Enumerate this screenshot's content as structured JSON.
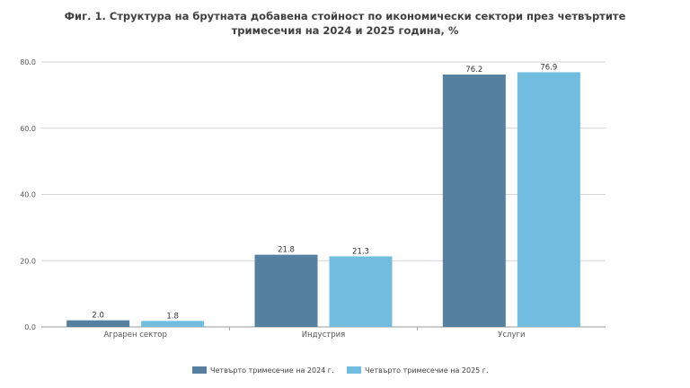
{
  "chart_data": {
    "type": "bar",
    "title": "Фиг. 1. Структура на брутната добавена стойност по икономически сектори през четвъртите",
    "title_line2": "тримесечия на 2024 и 2025 година, %",
    "categories": [
      "Аграрен сектор",
      "Индустрия",
      "Услуги"
    ],
    "series": [
      {
        "name": "Четвърто тримесечие на 2024 г.",
        "color": "#5580a0",
        "values": [
          2.0,
          21.8,
          76.2
        ]
      },
      {
        "name": "Четвърто тримесечие на 2025 г.",
        "color": "#70bde0",
        "values": [
          1.8,
          21.3,
          76.9
        ]
      }
    ],
    "ylim": [
      0,
      80
    ],
    "yticks": [
      "0.0",
      "20.0",
      "40.0",
      "60.0",
      "80.0"
    ],
    "grid": true,
    "legend_position": "bottom",
    "xlabel": "",
    "ylabel": ""
  }
}
